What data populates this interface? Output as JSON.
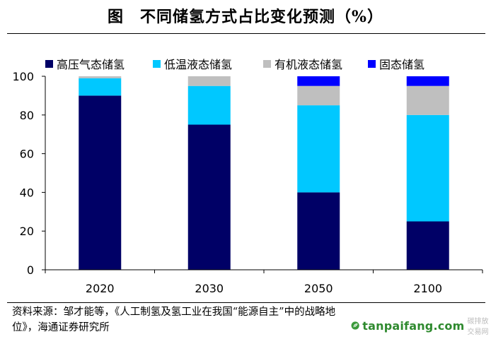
{
  "page": {
    "title": "图　不同储氢方式占比变化预测（%）",
    "source": "资料来源：邹才能等，《人工制氢及氢工业在我国“能源自主”中的战略地位》，海通证券研究所",
    "watermark": {
      "text": "tanpaifang.com",
      "subtext": "碳排放交易网",
      "color": "#2f8a2f"
    }
  },
  "chart_data": {
    "type": "bar",
    "stacked": true,
    "categories": [
      "2020",
      "2030",
      "2050",
      "2100"
    ],
    "series": [
      {
        "name": "高压气态储氢",
        "color": "#000066",
        "values": [
          90,
          75,
          40,
          25
        ]
      },
      {
        "name": "低温液态储氢",
        "color": "#00c8ff",
        "values": [
          9,
          20,
          45,
          55
        ]
      },
      {
        "name": "有机液态储氢",
        "color": "#bfbfbf",
        "values": [
          1,
          5,
          10,
          15
        ]
      },
      {
        "name": "固态储氢",
        "color": "#0000ff",
        "values": [
          0,
          0,
          5,
          5
        ]
      }
    ],
    "ylim": [
      0,
      100
    ],
    "yticks": [
      0,
      20,
      40,
      60,
      80,
      100
    ],
    "xlabel": "",
    "ylabel": "",
    "grid": false,
    "legend_position": "top"
  }
}
